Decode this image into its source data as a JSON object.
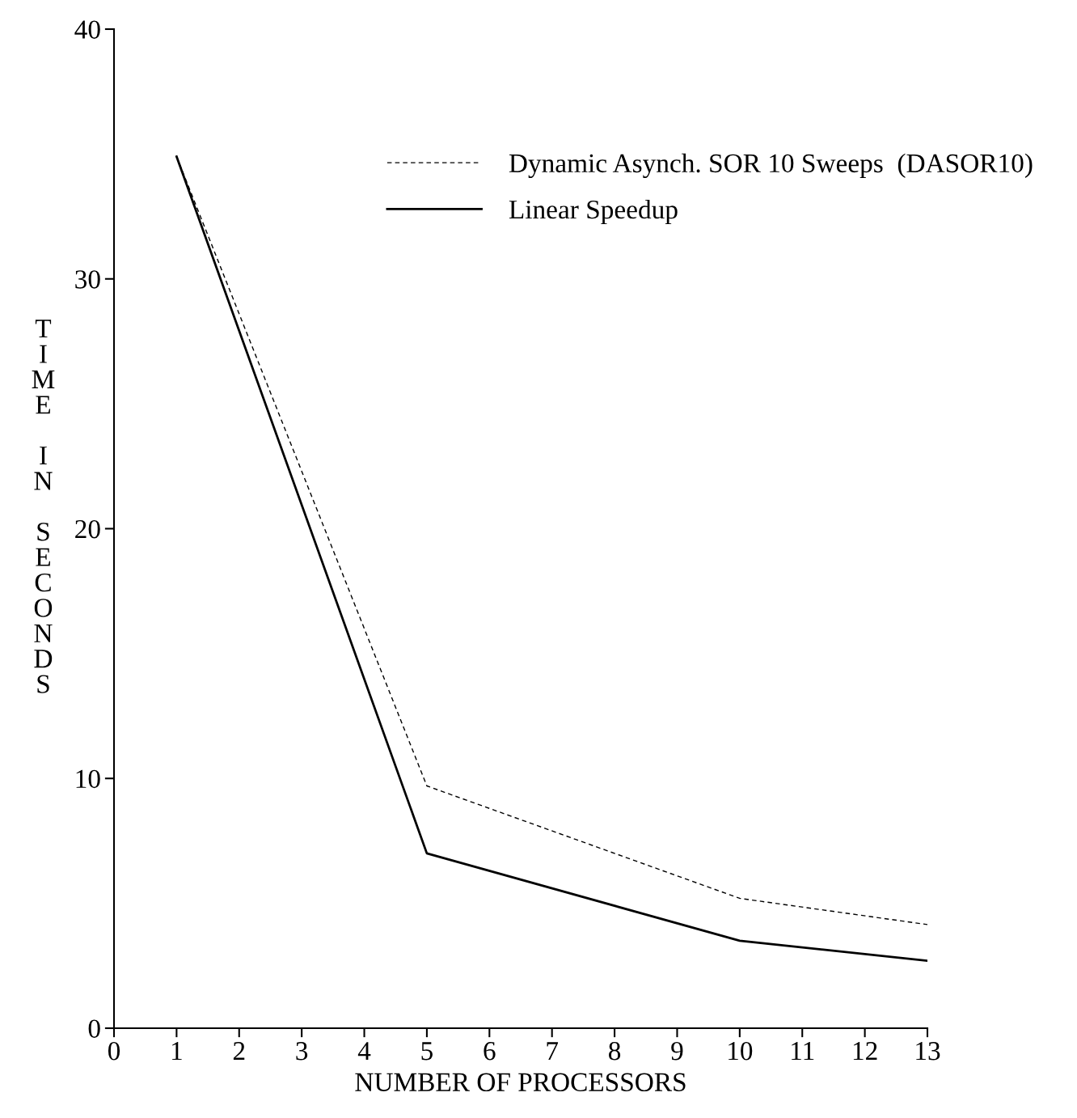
{
  "chart_data": {
    "type": "line",
    "xlabel": "NUMBER OF PROCESSORS",
    "ylabel": "TIME IN SECONDS",
    "series": [
      {
        "name": "Dynamic Asynch. SOR 10 Sweeps  (DASOR10)",
        "color": "#000000",
        "line_style": "dashed",
        "x": [
          1,
          5,
          10,
          13
        ],
        "values": [
          34.9,
          9.7,
          5.2,
          4.15
        ]
      },
      {
        "name": "Linear Speedup",
        "color": "#000000",
        "line_style": "solid",
        "x": [
          1,
          5,
          10,
          13
        ],
        "values": [
          34.9,
          7.0,
          3.5,
          2.7
        ]
      }
    ],
    "xlim": [
      0,
      13
    ],
    "ylim": [
      0,
      40
    ],
    "xticks": [
      0,
      1,
      2,
      3,
      4,
      5,
      6,
      7,
      8,
      9,
      10,
      11,
      12,
      13
    ],
    "yticks": [
      0,
      10,
      20,
      30,
      40
    ],
    "grid": false,
    "legend": "top right",
    "marker": "none"
  }
}
